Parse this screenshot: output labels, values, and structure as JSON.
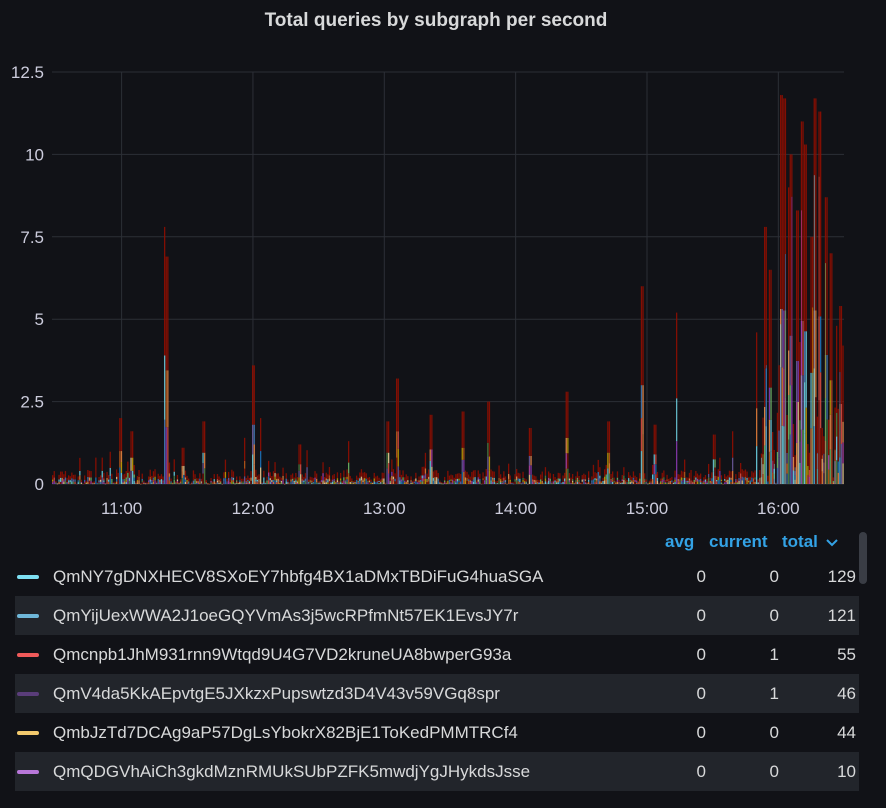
{
  "chart_data": {
    "type": "bar",
    "title": "Total queries by subgraph per second",
    "xlabel": "",
    "ylabel": "",
    "x_range_hours": [
      10.47,
      16.5
    ],
    "x_ticks": [
      "11:00",
      "12:00",
      "13:00",
      "14:00",
      "15:00",
      "16:00"
    ],
    "x_tick_hours": [
      11,
      12,
      13,
      14,
      15,
      16
    ],
    "y_ticks": [
      "0",
      "2.5",
      "5",
      "7.5",
      "10",
      "12.5"
    ],
    "y_tick_values": [
      0,
      2.5,
      5,
      7.5,
      10,
      12.5
    ],
    "ylim": [
      0,
      12.5
    ],
    "grid": true,
    "series_colors": [
      "#73bf69",
      "#6ed0e0",
      "#ef843c",
      "#e24d42",
      "#1f78c1",
      "#ba43a9",
      "#705da0",
      "#508642",
      "#cca300",
      "#447ebc",
      "#c15c17",
      "#890f02",
      "#f4d598",
      "#70dbed",
      "#f9934e",
      "#8f3bb8"
    ],
    "dominant_color": "#890f02",
    "spikes": [
      {
        "t": 10.99,
        "v": 2.0
      },
      {
        "t": 11.07,
        "v": 1.6
      },
      {
        "t": 11.32,
        "v": 7.8
      },
      {
        "t": 11.34,
        "v": 6.9
      },
      {
        "t": 11.47,
        "v": 1.1
      },
      {
        "t": 11.62,
        "v": 1.9
      },
      {
        "t": 11.93,
        "v": 1.4
      },
      {
        "t": 12.0,
        "v": 3.6
      },
      {
        "t": 12.05,
        "v": 2.0
      },
      {
        "t": 12.35,
        "v": 1.2
      },
      {
        "t": 12.72,
        "v": 1.3
      },
      {
        "t": 13.02,
        "v": 1.9
      },
      {
        "t": 13.1,
        "v": 3.2
      },
      {
        "t": 13.35,
        "v": 2.1
      },
      {
        "t": 13.6,
        "v": 2.2
      },
      {
        "t": 13.79,
        "v": 2.5
      },
      {
        "t": 14.1,
        "v": 1.7
      },
      {
        "t": 14.38,
        "v": 2.8
      },
      {
        "t": 14.7,
        "v": 1.9
      },
      {
        "t": 14.96,
        "v": 6.0
      },
      {
        "t": 15.05,
        "v": 1.8
      },
      {
        "t": 15.22,
        "v": 5.2
      },
      {
        "t": 15.5,
        "v": 1.5
      },
      {
        "t": 15.65,
        "v": 1.6
      },
      {
        "t": 15.83,
        "v": 4.6
      },
      {
        "t": 15.9,
        "v": 7.8
      },
      {
        "t": 15.94,
        "v": 6.5
      },
      {
        "t": 16.02,
        "v": 11.8
      },
      {
        "t": 16.04,
        "v": 11.7
      },
      {
        "t": 16.07,
        "v": 9.0
      },
      {
        "t": 16.1,
        "v": 10.0
      },
      {
        "t": 16.14,
        "v": 8.3
      },
      {
        "t": 16.17,
        "v": 11.0
      },
      {
        "t": 16.2,
        "v": 10.3
      },
      {
        "t": 16.25,
        "v": 7.5
      },
      {
        "t": 16.28,
        "v": 11.7
      },
      {
        "t": 16.31,
        "v": 11.3
      },
      {
        "t": 16.36,
        "v": 8.7
      },
      {
        "t": 16.39,
        "v": 7.0
      },
      {
        "t": 16.44,
        "v": 4.8
      },
      {
        "t": 16.47,
        "v": 5.4
      },
      {
        "t": 16.49,
        "v": 4.2
      }
    ]
  },
  "legend": {
    "columns": {
      "avg": "avg",
      "current": "current",
      "total": "total"
    },
    "sort_icon": "chevron-down-icon",
    "rows": [
      {
        "name": "QmNY7gDNXHECV8SXoEY7hbfg4BX1aDMxTBDiFuG4huaSGA",
        "color": "#7ddff2",
        "avg": "0",
        "current": "0",
        "total": "129"
      },
      {
        "name": "QmYijUexWWA2J1oeGQYVmAs3j5wcRPfmNt57EK1EvsJY7r",
        "color": "#6fb7d9",
        "avg": "0",
        "current": "0",
        "total": "121"
      },
      {
        "name": "Qmcnpb1JhM931rnn9Wtqd9U4G7VD2kruneUA8bwperG93a",
        "color": "#f05a5a",
        "avg": "0",
        "current": "1",
        "total": "55"
      },
      {
        "name": "QmV4da5KkAEpvtgE5JXkzxPupswtzd3D4V43v59VGq8spr",
        "color": "#5a3d7a",
        "avg": "0",
        "current": "1",
        "total": "46"
      },
      {
        "name": "QmbJzTd7DCAg9aP57DgLsYbokrX82BjE1ToKedPMMTRCf4",
        "color": "#f2c96d",
        "avg": "0",
        "current": "0",
        "total": "44"
      },
      {
        "name": "QmQDGVhAiCh3gkdMznRMUkSUbPZFK5mwdjYgJHykdsJsse",
        "color": "#b877d9",
        "avg": "0",
        "current": "0",
        "total": "10"
      }
    ]
  }
}
